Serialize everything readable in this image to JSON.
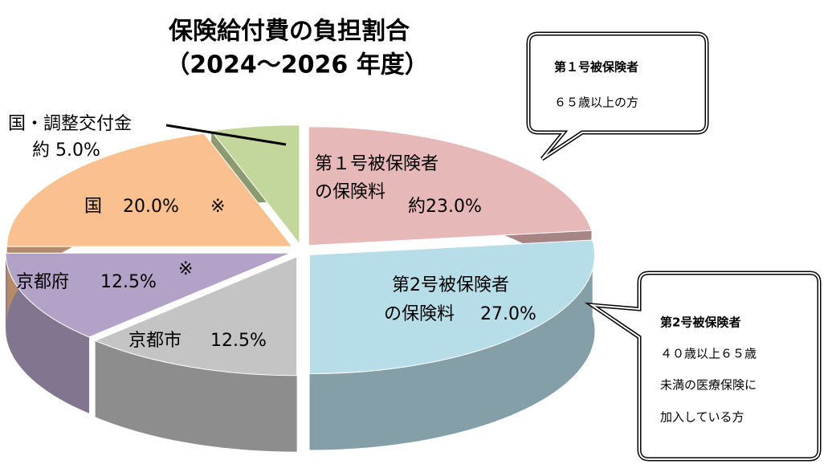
{
  "chart_data": {
    "type": "pie",
    "title": "保険給付費の負担割合",
    "subtitle": "（2024～2026 年度）",
    "categories": [
      [
        "第１号被保険者",
        "の保険料"
      ],
      [
        "第2号被保険者",
        "の保険料"
      ],
      [
        "京都市"
      ],
      [
        "京都府"
      ],
      [
        "国"
      ],
      [
        "国・調整交付金"
      ]
    ],
    "values": [
      23,
      27,
      12.5,
      12.5,
      20,
      5
    ],
    "value_labels": [
      "約23.0%",
      "27.0%",
      "12.5%",
      "12.5%",
      "20.0%",
      "約 5.0%"
    ],
    "colors": [
      "#e6b9b8",
      "#b7dde8",
      "#c4c4c4",
      "#b3a2c7",
      "#fac090",
      "#c3d69b"
    ],
    "annotations": [
      "※",
      "※"
    ],
    "callouts": [
      {
        "title": "第１号被保険者",
        "lines": [
          "６５歳以上の方"
        ]
      },
      {
        "title": "第2号被保険者",
        "lines": [
          "４０歳以上６５歳",
          "未満の医療保険に",
          "加入している方"
        ]
      }
    ]
  }
}
